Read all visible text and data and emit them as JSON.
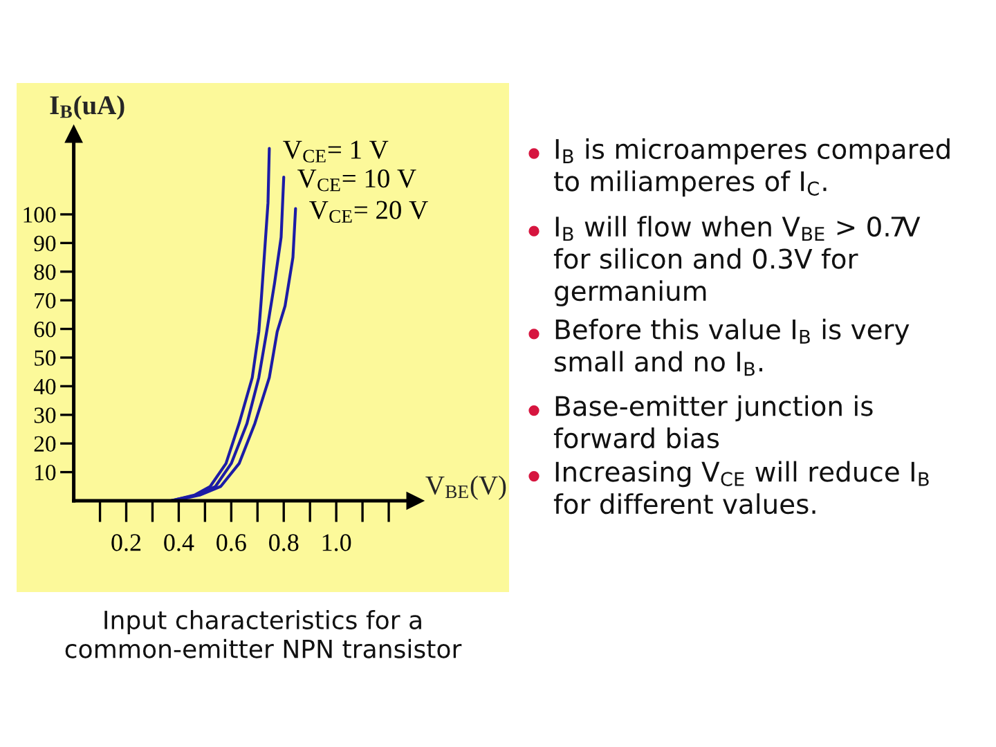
{
  "chart_data": [
    {
      "type": "line",
      "xlabel": "V$_{BE}$(V)",
      "ylabel": "I$_{B}$(uA)",
      "xlim": [
        0,
        1.3
      ],
      "ylim": [
        0,
        128
      ],
      "xticks": [
        {
          "value": 0.1,
          "label": null
        },
        0.2,
        {
          "value": 0.3,
          "label": null
        },
        0.4,
        {
          "value": 0.5,
          "label": null
        },
        0.6,
        {
          "value": 0.7,
          "label": null
        },
        0.8,
        {
          "value": 0.9,
          "label": null
        },
        {
          "value": 1.0,
          "label": "1.0"
        },
        {
          "value": 1.1,
          "label": null
        },
        {
          "value": 1.2,
          "label": null
        }
      ],
      "yticks": [
        10,
        20,
        30,
        40,
        50,
        60,
        70,
        80,
        90,
        100
      ],
      "series": [
        {
          "name": "V$_{CE}$= 1 V",
          "color": "#1c1ca6",
          "x": [
            0,
            0.37,
            0.46,
            0.52,
            0.58,
            0.63,
            0.68,
            0.705,
            0.715,
            0.74,
            0.745
          ],
          "values": [
            0,
            0,
            2,
            5,
            13,
            27,
            43,
            59,
            71,
            104,
            123
          ]
        },
        {
          "name": "V$_{CE}$= 10 V",
          "color": "#1c1ca6",
          "x": [
            0,
            0.37,
            0.47,
            0.54,
            0.6,
            0.66,
            0.705,
            0.735,
            0.765,
            0.79,
            0.8
          ],
          "values": [
            0,
            0,
            2,
            5,
            13,
            27,
            43,
            59,
            76,
            92,
            113
          ]
        },
        {
          "name": "V$_{CE}$= 20 V",
          "color": "#1c1ca6",
          "x": [
            0,
            0.38,
            0.48,
            0.56,
            0.63,
            0.69,
            0.745,
            0.775,
            0.805,
            0.835,
            0.845
          ],
          "values": [
            0,
            0,
            2,
            5,
            13,
            27,
            43,
            59,
            68,
            85,
            102
          ]
        }
      ],
      "annotations": [
        "Input characteristics for a common-emitter NPN transistor"
      ]
    },
    {
      "type": "other",
      "annotations": [
        "I$_{B}$ is microamperes compared to miliamperes of I$_{C}$.",
        "I$_{B}$ will flow when V$_{BE}$ > 0.7V for silicon and 0.3V for germanium",
        "Before this value I$_{B}$ is very small and no I$_{B}$.",
        "Base-emitter junction is forward bias",
        "Increasing V$_{CE}$ will reduce I$_{B}$ for different values."
      ]
    }
  ]
}
